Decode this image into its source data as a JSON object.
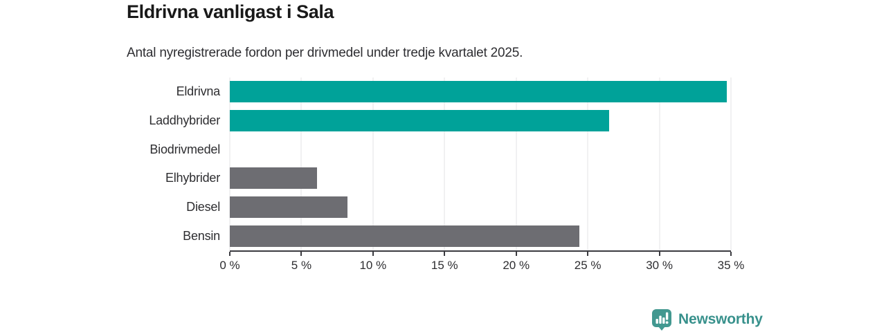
{
  "title": "Eldrivna vanligast i Sala",
  "subtitle": "Antal nyregistrerade fordon per drivmedel under tredje kvartalet 2025.",
  "branding": {
    "name": "Newsworthy",
    "icon": "bar-chart-speech-bubble-icon",
    "icon_color": "#429890",
    "text_color": "#38918c"
  },
  "colors": {
    "highlight_bar": "#00a299",
    "default_bar": "#6d6d72",
    "gridline": "#e3e3e6",
    "axis_line": "#3b3b40",
    "title_text": "#191919",
    "body_text": "#2d2d30"
  },
  "chart_data": {
    "type": "bar",
    "orientation": "horizontal",
    "title": "Eldrivna vanligast i Sala",
    "subtitle": "Antal nyregistrerade fordon per drivmedel under tredje kvartalet 2025.",
    "categories": [
      "Eldrivna",
      "Laddhybrider",
      "Biodrivmedel",
      "Elhybrider",
      "Diesel",
      "Bensin"
    ],
    "values": [
      34.7,
      26.5,
      0,
      6.1,
      8.2,
      24.4
    ],
    "bar_colors": [
      "#00a299",
      "#00a299",
      "#6d6d72",
      "#6d6d72",
      "#6d6d72",
      "#6d6d72"
    ],
    "xlabel": "",
    "ylabel": "",
    "xlim": [
      0,
      35
    ],
    "x_tick_values": [
      0,
      5,
      10,
      15,
      20,
      25,
      30,
      35
    ],
    "x_ticks": [
      "0 %",
      "5 %",
      "10 %",
      "15 %",
      "20 %",
      "25 %",
      "30 %",
      "35 %"
    ],
    "grid": true,
    "legend": false,
    "unit": "percent"
  }
}
